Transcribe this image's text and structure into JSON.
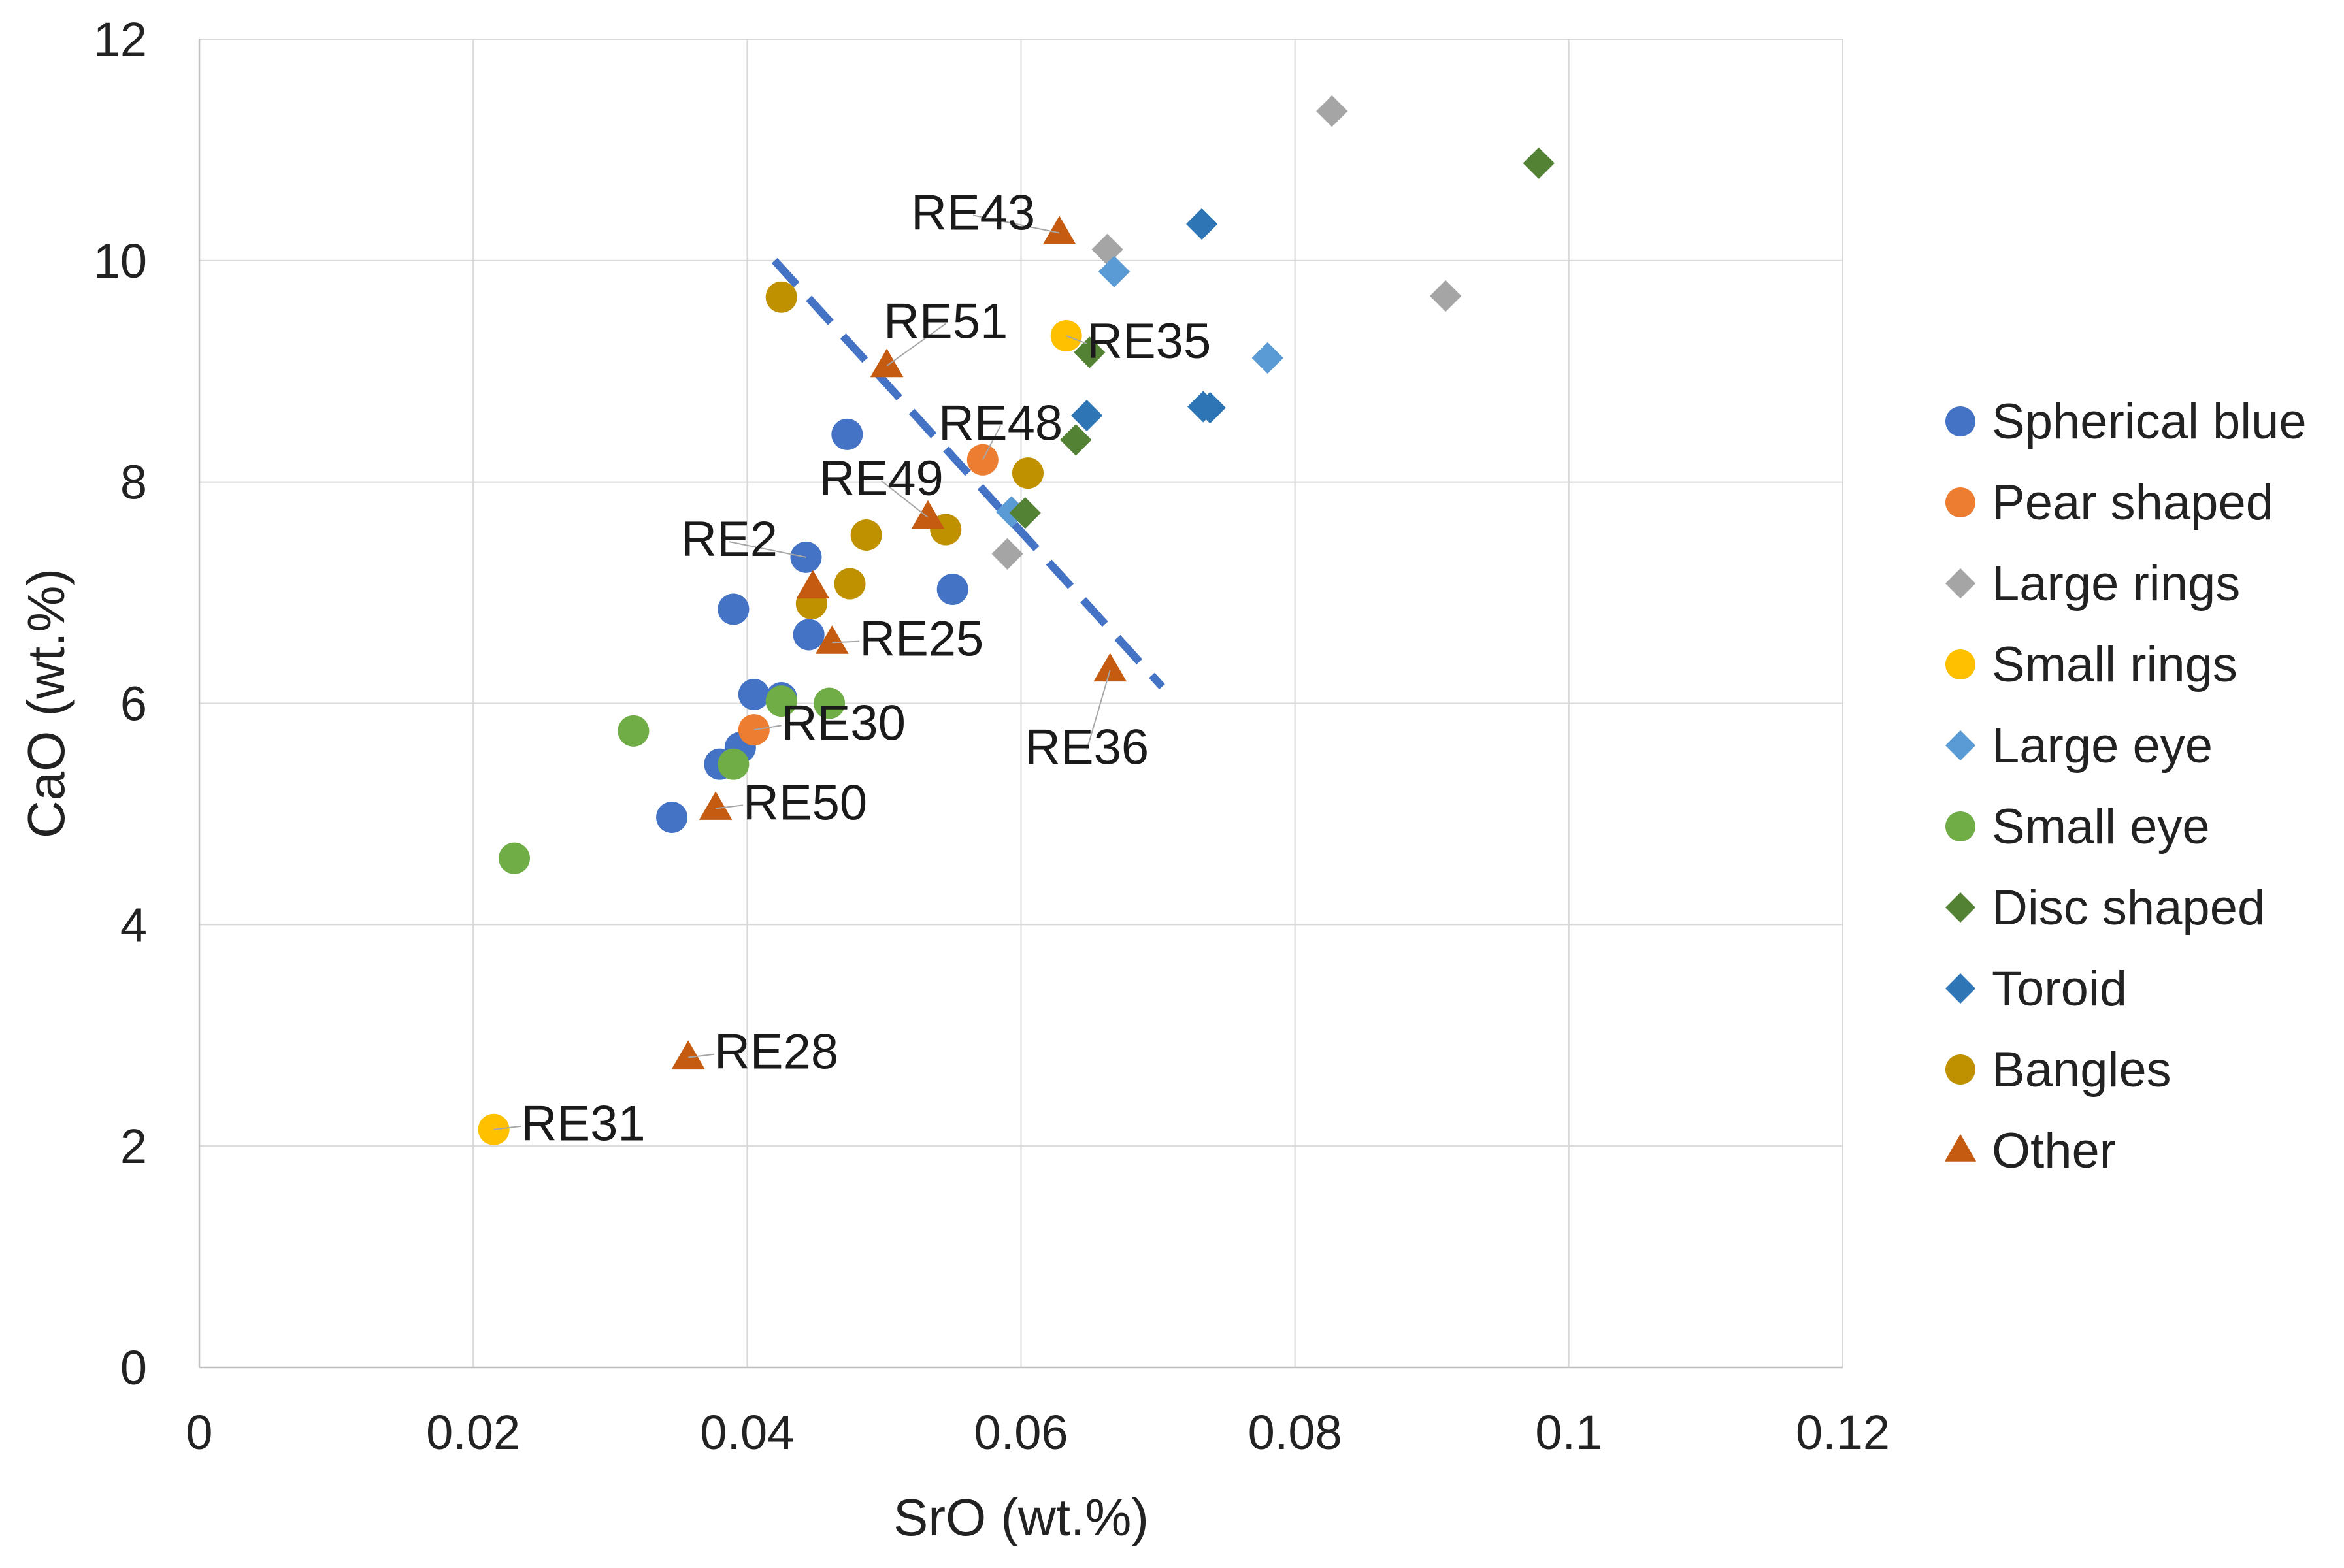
{
  "chart_data": {
    "type": "scatter",
    "title": "",
    "xlabel": "SrO (wt.%)",
    "ylabel": "CaO (wt.%)",
    "xlim": [
      0,
      0.12
    ],
    "ylim": [
      0,
      12
    ],
    "xticks": [
      0,
      0.02,
      0.04,
      0.06,
      0.08,
      0.1,
      0.12
    ],
    "yticks": [
      0,
      2,
      4,
      6,
      8,
      10,
      12
    ],
    "x_tick_labels": [
      "0",
      "0.02",
      "0.04",
      "0.06",
      "0.08",
      "0.1",
      "0.12"
    ],
    "y_tick_labels": [
      "0",
      "2",
      "4",
      "6",
      "8",
      "10",
      "12"
    ],
    "grid": true,
    "legend_position": "right",
    "series": [
      {
        "name": "Spherical blue",
        "marker": "circle",
        "color": "#4472C4",
        "points": [
          [
            0.0345,
            4.97
          ],
          [
            0.038,
            5.45
          ],
          [
            0.0395,
            5.6
          ],
          [
            0.0405,
            6.08
          ],
          [
            0.0425,
            6.05
          ],
          [
            0.039,
            6.85
          ],
          [
            0.0445,
            6.62
          ],
          [
            0.0443,
            7.32
          ],
          [
            0.0473,
            8.43
          ],
          [
            0.055,
            7.03
          ]
        ]
      },
      {
        "name": "Pear shaped",
        "marker": "circle",
        "color": "#ED7D31",
        "points": [
          [
            0.0405,
            5.76
          ],
          [
            0.0572,
            8.2
          ]
        ]
      },
      {
        "name": "Large rings",
        "marker": "diamond",
        "color": "#A5A5A5",
        "points": [
          [
            0.059,
            7.35
          ],
          [
            0.0663,
            10.1
          ],
          [
            0.0827,
            11.35
          ],
          [
            0.091,
            9.68
          ]
        ]
      },
      {
        "name": "Small rings",
        "marker": "circle",
        "color": "#FFC000",
        "points": [
          [
            0.0215,
            2.15
          ],
          [
            0.0633,
            9.32
          ]
        ]
      },
      {
        "name": "Large eye",
        "marker": "diamond",
        "color": "#5B9BD5",
        "points": [
          [
            0.0593,
            7.73
          ],
          [
            0.0668,
            9.9
          ],
          [
            0.078,
            9.12
          ]
        ]
      },
      {
        "name": "Small eye",
        "marker": "circle",
        "color": "#70AD47",
        "points": [
          [
            0.023,
            4.6
          ],
          [
            0.0317,
            5.75
          ],
          [
            0.039,
            5.45
          ],
          [
            0.0425,
            6.02
          ],
          [
            0.046,
            6.0
          ]
        ]
      },
      {
        "name": "Disc shaped",
        "marker": "diamond",
        "color": "#548235",
        "points": [
          [
            0.0603,
            7.72
          ],
          [
            0.064,
            8.38
          ],
          [
            0.065,
            9.17
          ],
          [
            0.0978,
            10.88
          ]
        ]
      },
      {
        "name": "Toroid",
        "marker": "diamond",
        "color": "#2E75B6",
        "points": [
          [
            0.0648,
            8.6
          ],
          [
            0.0732,
            10.33
          ],
          [
            0.0733,
            8.68
          ],
          [
            0.0738,
            8.67
          ]
        ]
      },
      {
        "name": "Bangles",
        "marker": "circle",
        "color": "#BF9000",
        "points": [
          [
            0.0425,
            9.67
          ],
          [
            0.0447,
            6.9
          ],
          [
            0.0475,
            7.08
          ],
          [
            0.0487,
            7.52
          ],
          [
            0.0545,
            7.57
          ],
          [
            0.0605,
            8.08
          ]
        ]
      },
      {
        "name": "Other",
        "marker": "triangle",
        "color": "#C55A11",
        "points": [
          [
            0.0357,
            2.8
          ],
          [
            0.0377,
            5.05
          ],
          [
            0.0448,
            7.05
          ],
          [
            0.0462,
            6.55
          ],
          [
            0.0502,
            9.05
          ],
          [
            0.0532,
            7.68
          ],
          [
            0.0628,
            10.25
          ],
          [
            0.0665,
            6.3
          ]
        ]
      }
    ],
    "trendline": {
      "style": "dashed",
      "color": "#4472C4",
      "from": [
        0.042,
        10.0
      ],
      "to": [
        0.0703,
        6.15
      ]
    },
    "annotations": [
      {
        "text": "RE43",
        "point": [
          0.0628,
          10.25
        ],
        "label_pos": [
          0.0565,
          10.28
        ],
        "anchor": "middle"
      },
      {
        "text": "RE51",
        "point": [
          0.0502,
          9.05
        ],
        "label_pos": [
          0.0545,
          9.3
        ],
        "anchor": "middle"
      },
      {
        "text": "RE35",
        "point": [
          0.0633,
          9.32
        ],
        "label_pos": [
          0.0648,
          9.12
        ],
        "anchor": "start"
      },
      {
        "text": "RE48",
        "point": [
          0.0572,
          8.2
        ],
        "label_pos": [
          0.0585,
          8.38
        ],
        "anchor": "middle"
      },
      {
        "text": "RE49",
        "point": [
          0.0532,
          7.68
        ],
        "label_pos": [
          0.0498,
          7.88
        ],
        "anchor": "middle"
      },
      {
        "text": "RE2",
        "point": [
          0.0443,
          7.32
        ],
        "label_pos": [
          0.0387,
          7.33
        ],
        "anchor": "middle"
      },
      {
        "text": "RE25",
        "point": [
          0.0462,
          6.55
        ],
        "label_pos": [
          0.0482,
          6.43
        ],
        "anchor": "start"
      },
      {
        "text": "RE30",
        "point": [
          0.0405,
          5.76
        ],
        "label_pos": [
          0.0425,
          5.67
        ],
        "anchor": "start"
      },
      {
        "text": "RE36",
        "point": [
          0.0665,
          6.3
        ],
        "label_pos": [
          0.0648,
          5.45
        ],
        "anchor": "middle"
      },
      {
        "text": "RE50",
        "point": [
          0.0377,
          5.05
        ],
        "label_pos": [
          0.0397,
          4.95
        ],
        "anchor": "start"
      },
      {
        "text": "RE28",
        "point": [
          0.0357,
          2.8
        ],
        "label_pos": [
          0.0376,
          2.7
        ],
        "anchor": "start"
      },
      {
        "text": "RE31",
        "point": [
          0.0215,
          2.15
        ],
        "label_pos": [
          0.0235,
          2.05
        ],
        "anchor": "start"
      }
    ]
  }
}
